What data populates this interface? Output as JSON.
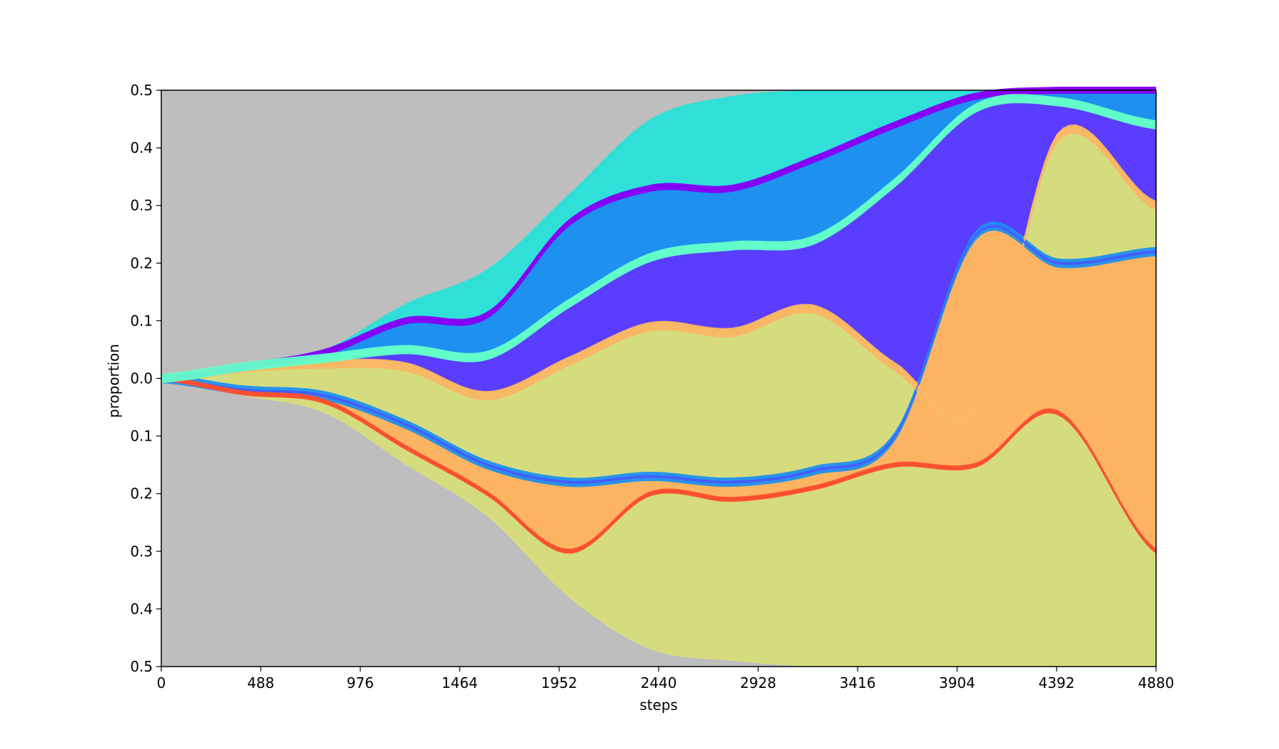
{
  "chart_data": {
    "type": "area",
    "title": "",
    "xlabel": "steps",
    "ylabel": "proportion",
    "x_ticks": [
      "0",
      "488",
      "976",
      "1464",
      "1952",
      "2440",
      "2928",
      "3416",
      "3904",
      "4392",
      "4880"
    ],
    "y_ticks": [
      "0.5",
      "0.4",
      "0.3",
      "0.2",
      "0.1",
      "0.0",
      "0.1",
      "0.2",
      "0.3",
      "0.4",
      "0.5"
    ],
    "xlim": [
      0,
      4880
    ],
    "ylim": [
      -0.5,
      0.5
    ],
    "background_color": "#bebebe",
    "x": [
      0,
      400,
      800,
      1200,
      1600,
      2000,
      2400,
      2800,
      3200,
      3600,
      4000,
      4400,
      4880
    ],
    "boundaries": [
      {
        "name": "upper_envelope",
        "values": [
          0.0,
          0.02,
          0.05,
          0.13,
          0.19,
          0.32,
          0.45,
          0.49,
          0.5,
          0.5,
          0.5,
          0.5,
          0.5
        ]
      },
      {
        "name": "upper_mid",
        "values": [
          0.0,
          0.02,
          0.045,
          0.1,
          0.11,
          0.27,
          0.33,
          0.33,
          0.38,
          0.44,
          0.49,
          0.5,
          0.5
        ]
      },
      {
        "name": "upper_inner",
        "values": [
          0.0,
          0.02,
          0.035,
          0.05,
          0.04,
          0.13,
          0.21,
          0.23,
          0.24,
          0.34,
          0.47,
          0.48,
          0.44
        ]
      },
      {
        "name": "zero_split",
        "values": [
          0.0,
          0.018,
          0.025,
          0.02,
          -0.03,
          0.03,
          0.09,
          0.08,
          0.12,
          0.02,
          -0.05,
          0.42,
          0.3
        ]
      },
      {
        "name": "lower_inner",
        "values": [
          0.0,
          -0.02,
          -0.03,
          -0.08,
          -0.15,
          -0.18,
          -0.17,
          -0.18,
          -0.16,
          -0.1,
          0.25,
          0.2,
          0.22
        ]
      },
      {
        "name": "lower_mid",
        "values": [
          0.0,
          -0.025,
          -0.04,
          -0.12,
          -0.2,
          -0.3,
          -0.2,
          -0.21,
          -0.19,
          -0.15,
          -0.15,
          -0.06,
          -0.3
        ]
      },
      {
        "name": "lower_envelope",
        "values": [
          0.0,
          -0.03,
          -0.06,
          -0.15,
          -0.24,
          -0.38,
          -0.47,
          -0.49,
          -0.5,
          -0.5,
          -0.5,
          -0.5,
          -0.5
        ]
      }
    ],
    "series": [
      {
        "color": "#f6c26b",
        "values": [
          0.0,
          0.02,
          0.03,
          0.05,
          0.03,
          0.03,
          0.02,
          0.02,
          0.02,
          0.02,
          0.02,
          0.02,
          0.01
        ]
      },
      {
        "color": "#d5dc7e",
        "values": [
          0.0,
          0.0,
          0.0,
          0.02,
          0.09,
          0.27,
          0.38,
          0.45,
          0.48,
          0.5,
          0.5,
          0.5,
          0.5
        ]
      },
      {
        "color": "#96ffa4",
        "values": [
          0.0,
          0.0,
          0.005,
          0.02,
          0.02,
          0.01,
          0.01,
          0.01,
          0.01,
          0.02,
          0.02,
          0.01,
          0.0
        ]
      },
      {
        "color": "#1e90f0",
        "values": [
          0.0,
          0.0,
          0.005,
          0.02,
          0.04,
          0.09,
          0.09,
          0.07,
          0.05,
          0.03,
          0.01,
          0.01,
          0.0
        ]
      },
      {
        "color": "#5a3dff",
        "values": [
          0.0,
          0.0,
          0.005,
          0.04,
          0.06,
          0.12,
          0.2,
          0.14,
          0.1,
          0.08,
          0.02,
          0.0,
          0.0
        ]
      },
      {
        "color": "#ff1e0a",
        "values": [
          0.0,
          0.0,
          0.0,
          0.0,
          0.01,
          0.02,
          0.03,
          0.04,
          0.03,
          0.04,
          0.06,
          0.0,
          0.0
        ]
      },
      {
        "color": "#30e0d8",
        "values": [
          0.0,
          0.0,
          0.0,
          0.005,
          0.005,
          0.02,
          0.03,
          0.03,
          0.01,
          0.01,
          0.01,
          0.0,
          0.0
        ]
      },
      {
        "color": "#fdb462",
        "values": [
          0.0,
          0.0,
          0.0,
          0.0,
          0.0,
          0.0,
          0.0,
          0.0,
          0.01,
          0.05,
          0.3,
          0.43,
          0.13
        ]
      },
      {
        "color": "#465cff",
        "values": [
          0.0,
          0.0,
          0.0,
          0.0,
          0.0,
          0.0,
          0.0,
          0.0,
          0.01,
          0.02,
          0.05,
          0.15,
          0.12
        ]
      },
      {
        "color": "#ff5028",
        "values": [
          0.0,
          0.0,
          0.0,
          0.0,
          0.0,
          0.0,
          0.0,
          0.0,
          0.0,
          0.0,
          0.02,
          0.2,
          0.12
        ]
      },
      {
        "color": "#8000ff",
        "values": [
          0.0,
          0.0,
          0.0,
          0.0,
          0.0,
          0.0,
          0.0,
          0.0,
          0.0,
          0.0,
          0.0,
          0.02,
          0.44
        ]
      },
      {
        "color": "#64ffc8",
        "values": [
          0.0,
          0.0,
          0.0,
          0.0,
          0.0,
          0.0,
          0.0,
          0.0,
          0.0,
          0.0,
          0.01,
          0.03,
          0.05
        ]
      }
    ]
  }
}
